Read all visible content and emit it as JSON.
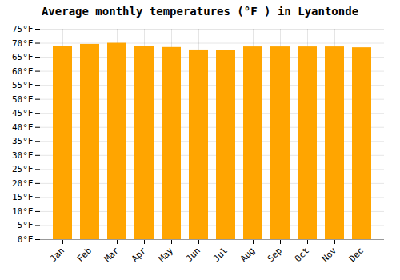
{
  "chart_data": {
    "type": "bar",
    "title": "Average monthly temperatures (°F ) in Lyantonde",
    "categories": [
      "Jan",
      "Feb",
      "Mar",
      "Apr",
      "May",
      "Jun",
      "Jul",
      "Aug",
      "Sep",
      "Oct",
      "Nov",
      "Dec"
    ],
    "values": [
      68.9,
      69.6,
      70.0,
      68.9,
      68.5,
      67.6,
      67.5,
      68.7,
      68.7,
      68.7,
      68.7,
      68.4
    ],
    "color": "#FFA500",
    "ylim": [
      0,
      75
    ],
    "yticks": [
      {
        "value": 0,
        "label": "0°F"
      },
      {
        "value": 5,
        "label": "5°F"
      },
      {
        "value": 10,
        "label": "10°F"
      },
      {
        "value": 15,
        "label": "15°F"
      },
      {
        "value": 20,
        "label": "20°F"
      },
      {
        "value": 25,
        "label": "25°F"
      },
      {
        "value": 30,
        "label": "30°F"
      },
      {
        "value": 35,
        "label": "35°F"
      },
      {
        "value": 40,
        "label": "40°F"
      },
      {
        "value": 45,
        "label": "45°F"
      },
      {
        "value": 50,
        "label": "50°F"
      },
      {
        "value": 55,
        "label": "55°F"
      },
      {
        "value": 60,
        "label": "60°F"
      },
      {
        "value": 65,
        "label": "65°F"
      },
      {
        "value": 70,
        "label": "70°F"
      },
      {
        "value": 75,
        "label": "75°F"
      }
    ],
    "grid": true
  }
}
